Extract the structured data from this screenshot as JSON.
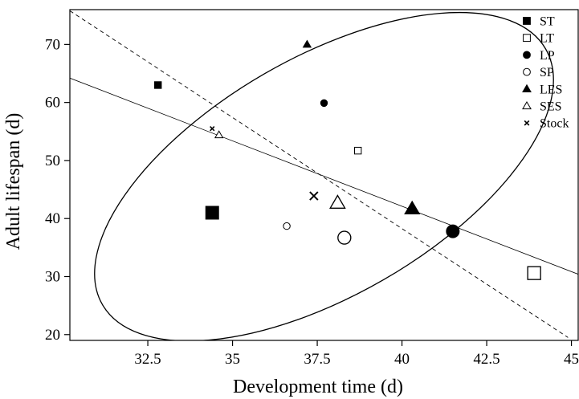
{
  "chart_data": {
    "type": "scatter",
    "xlabel": "Development time (d)",
    "ylabel": "Adult lifespan (d)",
    "xlim": [
      30.2,
      45.2
    ],
    "ylim": [
      19,
      76
    ],
    "xticks": [
      32.5,
      35,
      37.5,
      40,
      42.5,
      45
    ],
    "xtick_labels": [
      "32.5",
      "35",
      "37.5",
      "40",
      "42.5",
      "45"
    ],
    "yticks": [
      20,
      30,
      40,
      50,
      60,
      70
    ],
    "ytick_labels": [
      "20",
      "30",
      "40",
      "50",
      "60",
      "70"
    ],
    "grid": false,
    "legend_position": "top-right",
    "series": [
      {
        "name": "ST",
        "marker": "square-filled",
        "points": [
          {
            "x": 32.8,
            "y": 63,
            "size": "small"
          },
          {
            "x": 34.4,
            "y": 41,
            "size": "large"
          }
        ]
      },
      {
        "name": "LT",
        "marker": "square-open",
        "points": [
          {
            "x": 38.7,
            "y": 51.7,
            "size": "small"
          },
          {
            "x": 43.9,
            "y": 30.6,
            "size": "large"
          }
        ]
      },
      {
        "name": "LP",
        "marker": "circle-filled",
        "points": [
          {
            "x": 37.7,
            "y": 59.9,
            "size": "small"
          },
          {
            "x": 41.5,
            "y": 37.8,
            "size": "large"
          }
        ]
      },
      {
        "name": "SP",
        "marker": "circle-open",
        "points": [
          {
            "x": 36.6,
            "y": 38.7,
            "size": "small"
          },
          {
            "x": 38.3,
            "y": 36.7,
            "size": "large"
          }
        ]
      },
      {
        "name": "LES",
        "marker": "triangle-filled",
        "points": [
          {
            "x": 37.2,
            "y": 70,
            "size": "small"
          },
          {
            "x": 40.3,
            "y": 41.7,
            "size": "large"
          }
        ]
      },
      {
        "name": "SES",
        "marker": "triangle-open",
        "points": [
          {
            "x": 34.6,
            "y": 54.4,
            "size": "small"
          },
          {
            "x": 38.1,
            "y": 42.7,
            "size": "large"
          }
        ]
      },
      {
        "name": "Stock",
        "marker": "cross",
        "points": [
          {
            "x": 34.4,
            "y": 55.5,
            "size": "small"
          },
          {
            "x": 37.4,
            "y": 43.9,
            "size": "large"
          }
        ]
      }
    ],
    "lines": [
      {
        "style": "solid",
        "from": [
          30.2,
          64.2
        ],
        "to": [
          45.2,
          30.4
        ]
      },
      {
        "style": "dashed",
        "from": [
          30.2,
          75.8
        ],
        "to": [
          44.9,
          19.5
        ]
      }
    ],
    "ellipse": {
      "center": [
        37.7,
        47.2
      ],
      "radius_x": 7.55,
      "radius_y": 20.5,
      "rotation_deg": -30
    }
  }
}
